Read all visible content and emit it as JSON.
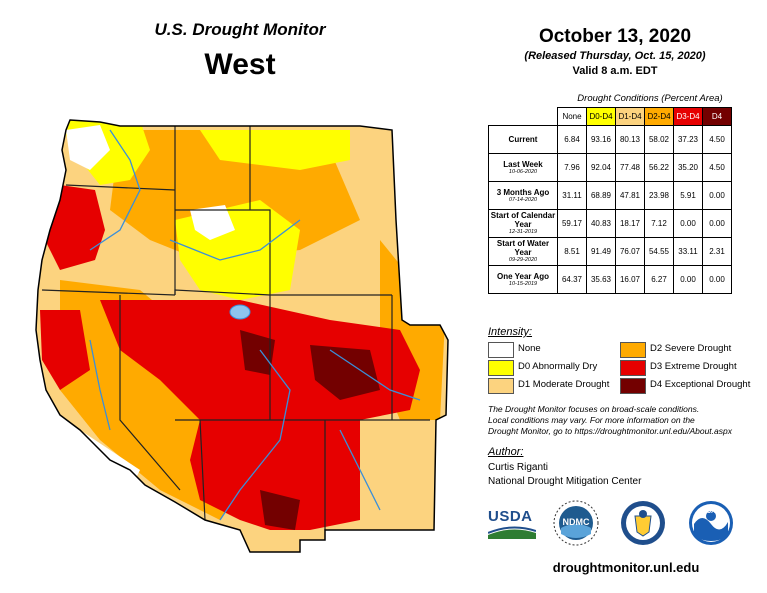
{
  "header": {
    "title": "U.S. Drought Monitor",
    "region": "West",
    "date": "October 13, 2020",
    "released": "(Released Thursday, Oct. 15, 2020)",
    "valid": "Valid 8 a.m. EDT"
  },
  "table": {
    "title": "Drought Conditions (Percent Area)",
    "columns": [
      "None",
      "D0-D4",
      "D1-D4",
      "D2-D4",
      "D3-D4",
      "D4"
    ],
    "column_colors": [
      "#ffffff",
      "#ffff00",
      "#fcd37f",
      "#ffaa00",
      "#e60000",
      "#730000"
    ],
    "rows": [
      {
        "label": "Current",
        "date": "",
        "values": [
          "6.84",
          "93.16",
          "80.13",
          "58.02",
          "37.23",
          "4.50"
        ]
      },
      {
        "label": "Last Week",
        "date": "10-06-2020",
        "values": [
          "7.96",
          "92.04",
          "77.48",
          "56.22",
          "35.20",
          "4.50"
        ]
      },
      {
        "label": "3 Months Ago",
        "date": "07-14-2020",
        "values": [
          "31.11",
          "68.89",
          "47.81",
          "23.98",
          "5.91",
          "0.00"
        ]
      },
      {
        "label": "Start of Calendar Year",
        "date": "12-31-2019",
        "values": [
          "59.17",
          "40.83",
          "18.17",
          "7.12",
          "0.00",
          "0.00"
        ]
      },
      {
        "label": "Start of Water Year",
        "date": "09-29-2020",
        "values": [
          "8.51",
          "91.49",
          "76.07",
          "54.55",
          "33.11",
          "2.31"
        ]
      },
      {
        "label": "One Year Ago",
        "date": "10-15-2019",
        "values": [
          "64.37",
          "35.63",
          "16.07",
          "6.27",
          "0.00",
          "0.00"
        ]
      }
    ]
  },
  "legend": {
    "title": "Intensity:",
    "items": [
      {
        "label": "None",
        "color": "#ffffff"
      },
      {
        "label": "D0 Abnormally Dry",
        "color": "#ffff00"
      },
      {
        "label": "D1 Moderate Drought",
        "color": "#fcd37f"
      },
      {
        "label": "D2 Severe Drought",
        "color": "#ffaa00"
      },
      {
        "label": "D3 Extreme Drought",
        "color": "#e60000"
      },
      {
        "label": "D4 Exceptional Drought",
        "color": "#730000"
      }
    ]
  },
  "note": {
    "line1": "The Drought Monitor focuses on broad-scale conditions.",
    "line2": "Local conditions may vary. For more information on the",
    "line3": "Drought Monitor, go to https://droughtmonitor.unl.edu/About.aspx"
  },
  "author": {
    "title": "Author:",
    "name": "Curtis Riganti",
    "org": "National Drought Mitigation Center"
  },
  "logos": {
    "usda": "USDA",
    "ndmc": "NDMC",
    "noaa": "NOAA"
  },
  "footer_url": "droughtmonitor.unl.edu"
}
